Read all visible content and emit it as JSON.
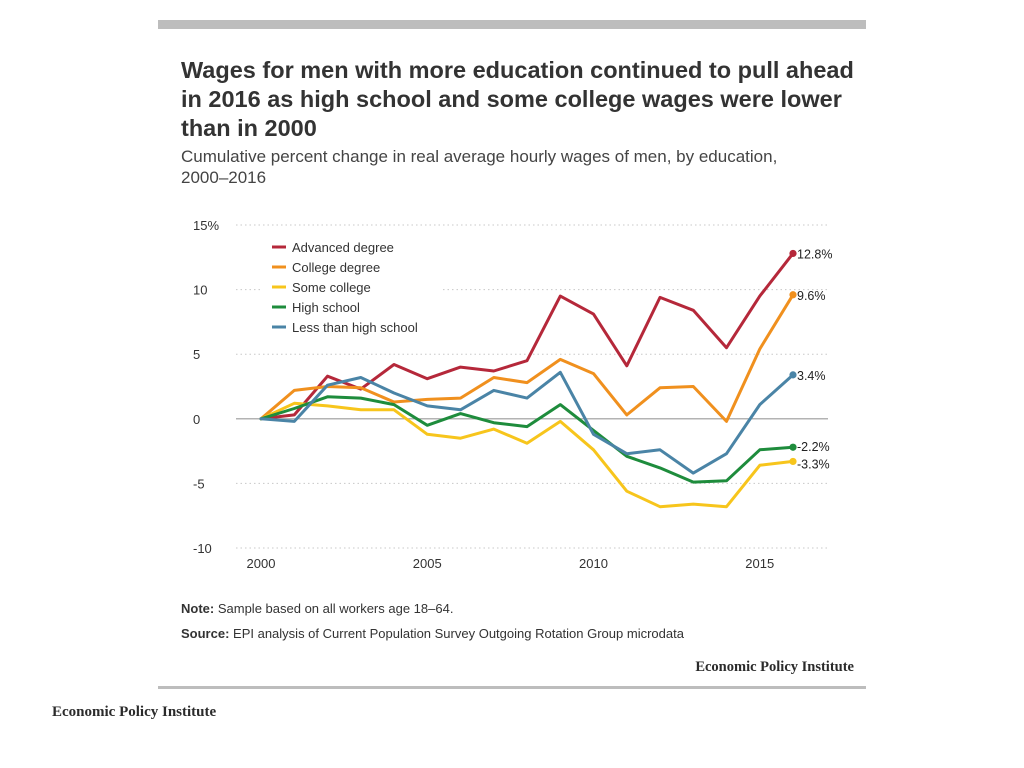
{
  "title": "Wages for men with more education continued to pull ahead in 2016 as high school and some college wages were lower than in 2000",
  "subtitle": "Cumulative percent change in real average hourly wages of men, by education, 2000–2016",
  "note_label": "Note:",
  "note_text": "Sample based on all workers age 18–64.",
  "source_label": "Source:",
  "source_text": "EPI analysis of Current Population Survey Outgoing Rotation Group microdata",
  "brand_inner": "Economic Policy Institute",
  "brand_outer": "Economic Policy Institute",
  "chart_data": {
    "type": "line",
    "x": [
      2000,
      2001,
      2002,
      2003,
      2004,
      2005,
      2006,
      2007,
      2008,
      2009,
      2010,
      2011,
      2012,
      2013,
      2014,
      2015,
      2016
    ],
    "xlim": [
      2000,
      2016
    ],
    "ylim": [
      -10,
      15
    ],
    "x_ticks": [
      {
        "value": 2000,
        "label": "2000"
      },
      {
        "value": 2005,
        "label": "2005"
      },
      {
        "value": 2010,
        "label": "2010"
      },
      {
        "value": 2015,
        "label": "2015"
      }
    ],
    "y_ticks": [
      {
        "value": 15,
        "label": "15%"
      },
      {
        "value": 10,
        "label": "10"
      },
      {
        "value": 5,
        "label": "5"
      },
      {
        "value": 0,
        "label": "0"
      },
      {
        "value": -5,
        "label": "-5"
      },
      {
        "value": -10,
        "label": "-10"
      }
    ],
    "grid": "horizontal dotted",
    "legend_position": "top-left",
    "series": [
      {
        "name": "Advanced degree",
        "color": "#b5283a",
        "end_label": "12.8%",
        "values": [
          0,
          0.3,
          3.3,
          2.3,
          4.2,
          3.1,
          4.0,
          3.7,
          4.5,
          9.5,
          8.1,
          4.1,
          9.4,
          8.4,
          5.5,
          9.5,
          12.8
        ]
      },
      {
        "name": "College degree",
        "color": "#f0901e",
        "end_label": "9.6%",
        "values": [
          0,
          2.2,
          2.5,
          2.4,
          1.3,
          1.5,
          1.6,
          3.2,
          2.8,
          4.6,
          3.5,
          0.3,
          2.4,
          2.5,
          -0.2,
          5.4,
          9.6
        ]
      },
      {
        "name": "Some college",
        "color": "#f7c51c",
        "end_label": "-3.3%",
        "values": [
          0,
          1.2,
          1.0,
          0.7,
          0.7,
          -1.2,
          -1.5,
          -0.8,
          -1.9,
          -0.2,
          -2.4,
          -5.6,
          -6.8,
          -6.6,
          -6.8,
          -3.6,
          -3.3
        ]
      },
      {
        "name": "High school",
        "color": "#1e8c3c",
        "end_label": "-2.2%",
        "values": [
          0,
          0.8,
          1.7,
          1.6,
          1.1,
          -0.5,
          0.4,
          -0.3,
          -0.6,
          1.1,
          -0.9,
          -2.9,
          -3.8,
          -4.9,
          -4.8,
          -2.4,
          -2.2
        ]
      },
      {
        "name": "Less than high school",
        "color": "#4a84a6",
        "end_label": "3.4%",
        "values": [
          0,
          -0.2,
          2.6,
          3.2,
          2.0,
          1.0,
          0.7,
          2.2,
          1.6,
          3.6,
          -1.2,
          -2.7,
          -2.4,
          -4.2,
          -2.7,
          1.1,
          3.4
        ]
      }
    ]
  }
}
